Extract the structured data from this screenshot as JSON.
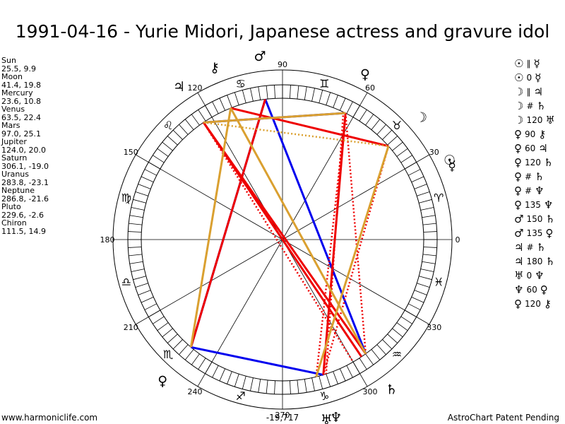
{
  "title": "1991-04-16 - Yurie Midori, Japanese actress and gravure idol",
  "footer": {
    "left": "www.harmoniclife.com",
    "right": "AstroChart Patent Pending"
  },
  "planets": [
    {
      "name": "Sun",
      "values": "25.5, 9.9"
    },
    {
      "name": "Moon",
      "values": "41.4, 19.8"
    },
    {
      "name": "Mercury",
      "values": "23.6, 10.8"
    },
    {
      "name": "Venus",
      "values": "63.5, 22.4"
    },
    {
      "name": "Mars",
      "values": "97.0, 25.1"
    },
    {
      "name": "Jupiter",
      "values": "124.0, 20.0"
    },
    {
      "name": "Saturn",
      "values": "306.1, -19.0"
    },
    {
      "name": "Uranus",
      "values": "283.8, -23.1"
    },
    {
      "name": "Neptune",
      "values": "286.8, -21.6"
    },
    {
      "name": "Pluto",
      "values": "229.6, -2.6"
    },
    {
      "name": "Chiron",
      "values": "111.5, 14.9"
    }
  ],
  "aspects": [
    {
      "p1": "☉",
      "sym": "∥",
      "p2": "☿"
    },
    {
      "p1": "☉",
      "sym": "0",
      "p2": "☿"
    },
    {
      "p1": "☽",
      "sym": "∥",
      "p2": "♃"
    },
    {
      "p1": "☽",
      "sym": "#",
      "p2": "♄"
    },
    {
      "p1": "☽",
      "sym": "120",
      "p2": "♅"
    },
    {
      "p1": "♀",
      "sym": "90",
      "p2": "⚷"
    },
    {
      "p1": "♀",
      "sym": "60",
      "p2": "♃"
    },
    {
      "p1": "♀",
      "sym": "120",
      "p2": "♄"
    },
    {
      "p1": "♀",
      "sym": "#",
      "p2": "♄"
    },
    {
      "p1": "♀",
      "sym": "#",
      "p2": "♆"
    },
    {
      "p1": "♀",
      "sym": "135",
      "p2": "♆"
    },
    {
      "p1": "♂",
      "sym": "150",
      "p2": "♄"
    },
    {
      "p1": "♂",
      "sym": "135",
      "p2": "♀"
    },
    {
      "p1": "♃",
      "sym": "#",
      "p2": "♄"
    },
    {
      "p1": "♃",
      "sym": "180",
      "p2": "♄"
    },
    {
      "p1": "♅",
      "sym": "0",
      "p2": "♆"
    },
    {
      "p1": "♆",
      "sym": "60",
      "p2": "♀"
    },
    {
      "p1": "♀",
      "sym": "120",
      "p2": "⚷"
    }
  ],
  "chart_data": {
    "type": "wheel",
    "degree_labels": [
      "0",
      "30",
      "60",
      "90",
      "120",
      "150",
      "180",
      "210",
      "240",
      "270",
      "300",
      "330"
    ],
    "zodiac": [
      {
        "name": "aries",
        "glyph": "♈",
        "deg": 15
      },
      {
        "name": "taurus",
        "glyph": "♉",
        "deg": 45
      },
      {
        "name": "gemini",
        "glyph": "♊",
        "deg": 75
      },
      {
        "name": "cancer",
        "glyph": "♋",
        "deg": 105
      },
      {
        "name": "leo",
        "glyph": "♌",
        "deg": 135
      },
      {
        "name": "virgo",
        "glyph": "♍",
        "deg": 165
      },
      {
        "name": "libra",
        "glyph": "♎",
        "deg": 195
      },
      {
        "name": "scorpio",
        "glyph": "♏",
        "deg": 225
      },
      {
        "name": "sagittarius",
        "glyph": "♐",
        "deg": 255
      },
      {
        "name": "capricorn",
        "glyph": "♑",
        "deg": 285
      },
      {
        "name": "aquarius",
        "glyph": "♒",
        "deg": 315
      },
      {
        "name": "pisces",
        "glyph": "♓",
        "deg": 345
      }
    ],
    "bodies": [
      {
        "name": "sun",
        "glyph": "☉",
        "deg": 25.5
      },
      {
        "name": "moon",
        "glyph": "☽",
        "deg": 41.4
      },
      {
        "name": "mercury",
        "glyph": "☿",
        "deg": 23.6
      },
      {
        "name": "venus",
        "glyph": "♀",
        "deg": 63.5
      },
      {
        "name": "mars",
        "glyph": "♂",
        "deg": 97.0
      },
      {
        "name": "jupiter",
        "glyph": "♃",
        "deg": 124.0
      },
      {
        "name": "saturn",
        "glyph": "♄",
        "deg": 306.1
      },
      {
        "name": "uranus",
        "glyph": "♅",
        "deg": 283.8
      },
      {
        "name": "neptune",
        "glyph": "♆",
        "deg": 286.8
      },
      {
        "name": "pluto",
        "glyph": "♀",
        "deg": 229.6
      },
      {
        "name": "chiron",
        "glyph": "⚷",
        "deg": 111.5
      }
    ],
    "aspect_lines": [
      {
        "from": 97.0,
        "to": 306.1,
        "color": "#0000ee",
        "style": "solid"
      },
      {
        "from": 97.0,
        "to": 229.6,
        "color": "#0000ee",
        "style": "solid"
      },
      {
        "from": 124.0,
        "to": 63.5,
        "color": "#0000ee",
        "style": "solid"
      },
      {
        "from": 229.6,
        "to": 286.8,
        "color": "#0000ee",
        "style": "solid"
      },
      {
        "from": 124.0,
        "to": 306.1,
        "color": "#ee0000",
        "style": "solid"
      },
      {
        "from": 97.0,
        "to": 229.6,
        "color": "#ee0000",
        "style": "solid"
      },
      {
        "from": 111.5,
        "to": 41.4,
        "color": "#ee0000",
        "style": "solid"
      },
      {
        "from": 63.5,
        "to": 286.8,
        "color": "#ee0000",
        "style": "solid"
      },
      {
        "from": 124.0,
        "to": 304.0,
        "color": "#ee0000",
        "style": "solid"
      },
      {
        "from": 124.0,
        "to": 300.0,
        "color": "#ee0000",
        "style": "dotted"
      },
      {
        "from": 63.5,
        "to": 283.8,
        "color": "#ee0000",
        "style": "dotted"
      },
      {
        "from": 64.5,
        "to": 288.0,
        "color": "#ee0000",
        "style": "dotted"
      },
      {
        "from": 41.4,
        "to": 286.8,
        "color": "#ee0000",
        "style": "dotted"
      },
      {
        "from": 63.5,
        "to": 306.1,
        "color": "#ee0000",
        "style": "dotted"
      },
      {
        "from": 111.5,
        "to": 229.6,
        "color": "#daa030",
        "style": "solid"
      },
      {
        "from": 63.5,
        "to": 124.0,
        "color": "#daa030",
        "style": "solid"
      },
      {
        "from": 41.4,
        "to": 283.8,
        "color": "#daa030",
        "style": "solid"
      },
      {
        "from": 111.5,
        "to": 306.1,
        "color": "#daa030",
        "style": "solid"
      },
      {
        "from": 124.0,
        "to": 41.4,
        "color": "#daa030",
        "style": "dotted"
      }
    ],
    "center_label": "-19,717"
  }
}
